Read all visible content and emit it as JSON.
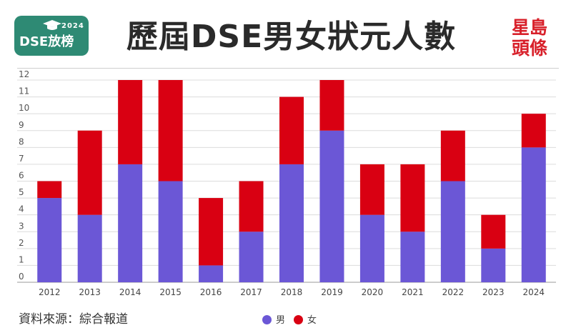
{
  "header": {
    "badge_main": "DSE放榜",
    "badge_year": "2024",
    "title": "歷屆DSE男女狀元人數",
    "brand_line1": "星島",
    "brand_line2": "頭條",
    "brand_color": "#d8202a",
    "badge_color": "#2e8a74"
  },
  "footer": {
    "source": "資料來源：綜合報道"
  },
  "legend": {
    "items": [
      {
        "label": "男",
        "color": "#6b57d6"
      },
      {
        "label": "女",
        "color": "#d90012"
      }
    ]
  },
  "chart_data": {
    "type": "bar",
    "stacked": true,
    "categories": [
      "2012",
      "2013",
      "2014",
      "2015",
      "2016",
      "2017",
      "2018",
      "2019",
      "2020",
      "2021",
      "2022",
      "2023",
      "2024"
    ],
    "series": [
      {
        "name": "男",
        "color": "#6b57d6",
        "values": [
          5,
          4,
          7,
          6,
          1,
          3,
          7,
          9,
          4,
          3,
          6,
          2,
          8
        ]
      },
      {
        "name": "女",
        "color": "#d90012",
        "values": [
          1,
          5,
          5,
          6,
          4,
          3,
          4,
          3,
          3,
          4,
          3,
          2,
          2
        ]
      }
    ],
    "ylim": [
      0,
      12
    ],
    "yticks": [
      0,
      1,
      2,
      3,
      4,
      5,
      6,
      7,
      8,
      9,
      10,
      11,
      12
    ],
    "grid": true,
    "legend_position": "bottom"
  }
}
